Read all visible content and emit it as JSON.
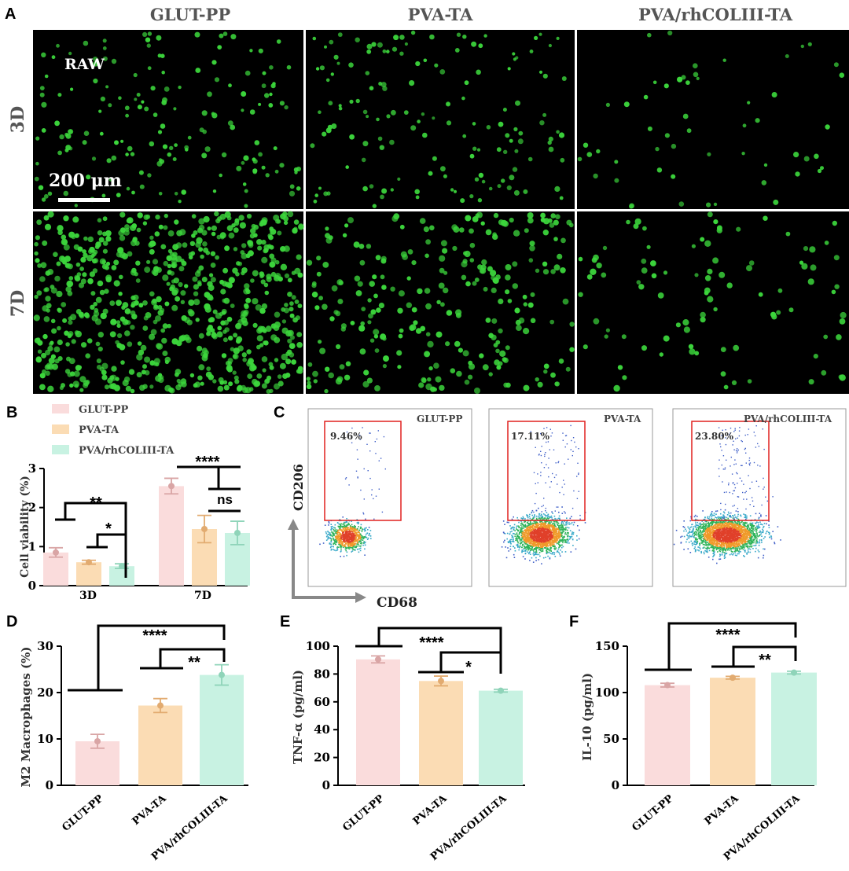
{
  "colors": {
    "glut": "#fadcdc",
    "pva": "#fbdcb4",
    "col": "#c8f2e2",
    "cell": "#3cd63c",
    "gate": "#e0211f",
    "dot_pink": "#d9a5a5",
    "dot_orange": "#e2ab70",
    "dot_green": "#8fd4b9"
  },
  "panel_letters": {
    "a": "A",
    "b": "B",
    "c": "C",
    "d": "D",
    "e": "E",
    "f": "F"
  },
  "panel_a": {
    "columns": [
      "GLUT-PP",
      "PVA-TA",
      "PVA/rhCOLIII-TA"
    ],
    "rows": [
      "3D",
      "7D"
    ],
    "raw_label": "RAW",
    "scale_label": "200 μm"
  },
  "panel_b": {
    "legend": [
      "GLUT-PP",
      "PVA-TA",
      "PVA/rhCOLIII-TA"
    ],
    "ylabel": "Cell viability (%)",
    "ylim": [
      0,
      3
    ],
    "yticks": [
      "0",
      "1",
      "2",
      "3"
    ],
    "categories": [
      "3D",
      "7D"
    ],
    "sig": [
      "**",
      "*",
      "****",
      "ns"
    ]
  },
  "panel_c": {
    "ylabel": "CD206",
    "xlabel": "CD68",
    "plots": [
      {
        "name": "GLUT-PP",
        "pct": "9.46%"
      },
      {
        "name": "PVA-TA",
        "pct": "17.11%"
      },
      {
        "name": "PVA/rhCOLIII-TA",
        "pct": "23.80%"
      }
    ]
  },
  "panel_d": {
    "ylabel": "M2 Macrophages (%)",
    "ylim": [
      0,
      30
    ],
    "yticks": [
      "0",
      "10",
      "20",
      "30"
    ],
    "xticks": [
      "GLUT-PP",
      "PVA-TA",
      "PVA/rhCOLIII-TA"
    ],
    "sig": [
      "****",
      "**"
    ]
  },
  "panel_e": {
    "ylabel": "TNF-α (pg/ml)",
    "ylim": [
      0,
      100
    ],
    "yticks": [
      "0",
      "20",
      "40",
      "60",
      "80",
      "100"
    ],
    "xticks": [
      "GLUT-PP",
      "PVA-TA",
      "PVA/rhCOLIII-TA"
    ],
    "sig": [
      "****",
      "*"
    ]
  },
  "panel_f": {
    "ylabel": "IL-10 (pg/ml)",
    "ylim": [
      0,
      150
    ],
    "yticks": [
      "0",
      "50",
      "100",
      "150"
    ],
    "xticks": [
      "GLUT-PP",
      "PVA-TA",
      "PVA/rhCOLIII-TA"
    ],
    "sig": [
      "****",
      "**"
    ]
  },
  "chart_data": [
    {
      "type": "bar",
      "panel": "B",
      "ylabel": "Cell viability (%)",
      "ylim": [
        0,
        3
      ],
      "categories": [
        "3D",
        "7D"
      ],
      "series": [
        {
          "name": "GLUT-PP",
          "values": [
            0.85,
            2.55
          ],
          "errors": [
            0.12,
            0.2
          ]
        },
        {
          "name": "PVA-TA",
          "values": [
            0.6,
            1.45
          ],
          "errors": [
            0.05,
            0.35
          ]
        },
        {
          "name": "PVA/rhCOLIII-TA",
          "values": [
            0.5,
            1.35
          ],
          "errors": [
            0.06,
            0.3
          ]
        }
      ],
      "legend": "top-left"
    },
    {
      "type": "bar",
      "panel": "D",
      "ylabel": "M2 Macrophages (%)",
      "ylim": [
        0,
        30
      ],
      "categories": [
        "GLUT-PP",
        "PVA-TA",
        "PVA/rhCOLIII-TA"
      ],
      "values": [
        9.5,
        17.2,
        23.8
      ],
      "errors": [
        1.5,
        1.5,
        2.2
      ]
    },
    {
      "type": "bar",
      "panel": "E",
      "ylabel": "TNF-α (pg/ml)",
      "ylim": [
        0,
        100
      ],
      "categories": [
        "GLUT-PP",
        "PVA-TA",
        "PVA/rhCOLIII-TA"
      ],
      "values": [
        90.5,
        75,
        68
      ],
      "errors": [
        2.5,
        3.5,
        1
      ]
    },
    {
      "type": "bar",
      "panel": "F",
      "ylabel": "IL-10 (pg/ml)",
      "ylim": [
        0,
        150
      ],
      "categories": [
        "GLUT-PP",
        "PVA-TA",
        "PVA/rhCOLIII-TA"
      ],
      "values": [
        108,
        116,
        121.5
      ],
      "errors": [
        2,
        1.5,
        1.5
      ]
    }
  ]
}
